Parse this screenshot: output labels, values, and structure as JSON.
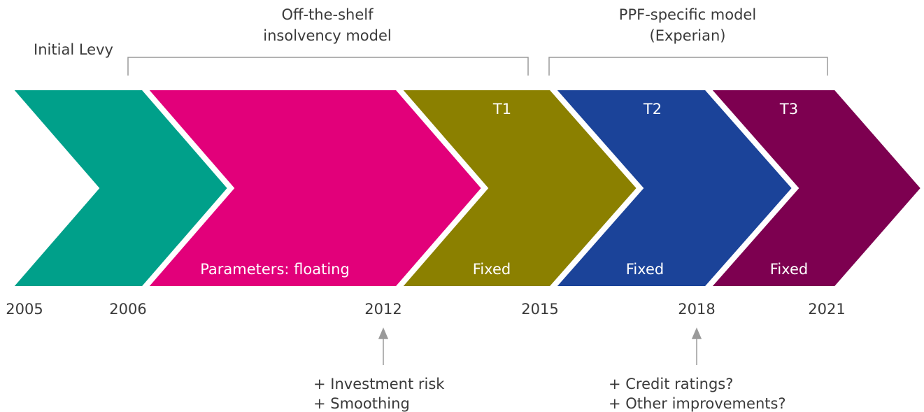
{
  "header": {
    "initial": "Initial Levy",
    "model1": [
      "Off-the-shelf",
      "insolvency model"
    ],
    "model2": [
      "PPF-specific model",
      "(Experian)"
    ]
  },
  "phases": [
    {
      "top": null,
      "bottom": null
    },
    {
      "top": null,
      "bottom": "Parameters: floating"
    },
    {
      "top": "T1",
      "bottom": "Fixed"
    },
    {
      "top": "T2",
      "bottom": "Fixed"
    },
    {
      "top": "T3",
      "bottom": "Fixed"
    }
  ],
  "years": [
    "2005",
    "2006",
    "2012",
    "2015",
    "2018",
    "2021"
  ],
  "notes": [
    [
      "+ Investment risk",
      "+ Smoothing"
    ],
    [
      "+ Credit ratings?",
      "+ Other improvements?"
    ]
  ]
}
